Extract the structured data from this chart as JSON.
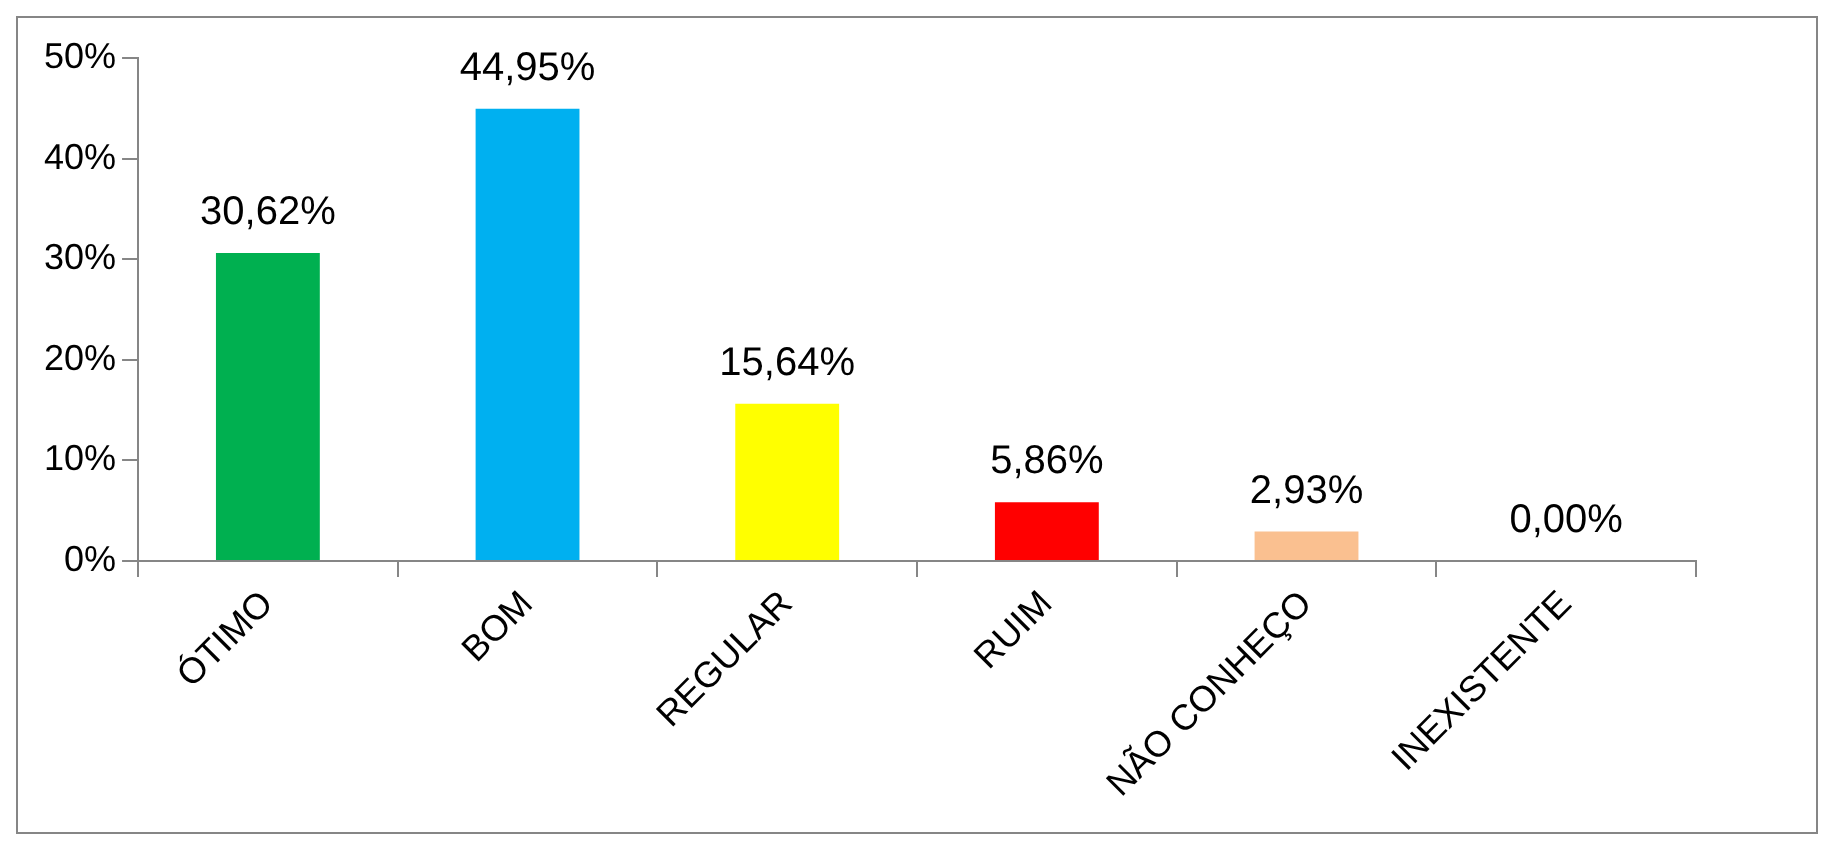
{
  "chart_data": {
    "type": "bar",
    "categories": [
      "ÓTIMO",
      "BOM",
      "REGULAR",
      "RUIM",
      "NÃO CONHEÇO",
      "INEXISTENTE"
    ],
    "values": [
      30.62,
      44.95,
      15.64,
      5.86,
      2.93,
      0
    ],
    "colors": [
      "#00b050",
      "#00b0f0",
      "#ffff00",
      "#ff0000",
      "#fac090",
      "#ffc000"
    ],
    "value_labels": [
      "30,62%",
      "44,95%",
      "15,64%",
      "5,86%",
      "2,93%",
      "0,00%"
    ],
    "ylim": [
      0,
      50
    ],
    "yticks": [
      {
        "value": 0,
        "label": "0%"
      },
      {
        "value": 10,
        "label": "10%"
      },
      {
        "value": 20,
        "label": "20%"
      },
      {
        "value": 30,
        "label": "30%"
      },
      {
        "value": 40,
        "label": "40%"
      },
      {
        "value": 50,
        "label": "50%"
      }
    ],
    "grid": false,
    "legend": false
  }
}
